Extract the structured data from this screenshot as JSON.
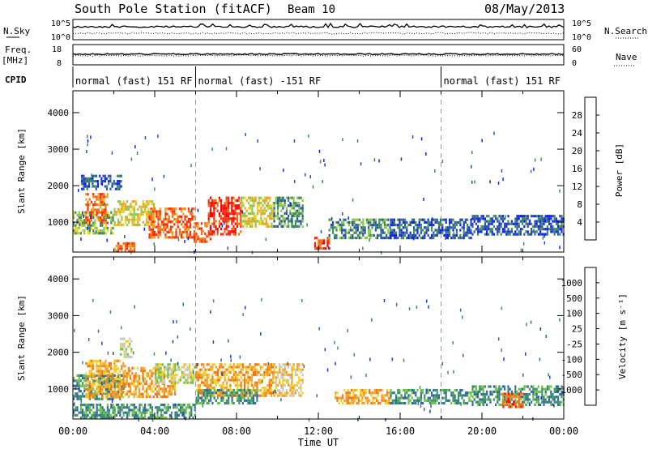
{
  "header": {
    "station": "South Pole Station (fitACF)",
    "beam": "Beam 10",
    "date": "08/May/2013"
  },
  "noise_panel": {
    "left_label": "N.Sky",
    "right_label": "N.Search",
    "left_ticks": [
      "10^5",
      "10^0"
    ],
    "right_ticks": [
      "10^5",
      "10^0"
    ]
  },
  "freq_panel": {
    "left_label_1": "Freq.",
    "left_label_2": "[MHz]",
    "right_label": "Nave",
    "left_ticks": [
      "18",
      "8"
    ],
    "right_ticks": [
      "60",
      "0"
    ]
  },
  "cpid": {
    "label": "CPID",
    "segments": [
      {
        "text": "normal (fast) 151 RF",
        "start_hour": 0,
        "end_hour": 6
      },
      {
        "text": "normal (fast) -151 RF",
        "start_hour": 6,
        "end_hour": 18
      },
      {
        "text": "normal (fast) 151 RF",
        "start_hour": 18,
        "end_hour": 24
      }
    ]
  },
  "power_panel": {
    "ylabel": "Slant Range [km]",
    "colorbar_label": "Power [dB]",
    "colorbar_ticks": [
      "28",
      "24",
      "20",
      "16",
      "12",
      "8",
      "4"
    ],
    "colors": [
      "#0f25ef",
      "#2b4fb0",
      "#3f8a5a",
      "#8cc84a",
      "#f0d020",
      "#f0a028",
      "#f07010",
      "#ff2a10",
      "#ff0000"
    ]
  },
  "velocity_panel": {
    "ylabel": "Slant Range [km]",
    "colorbar_label": "Velocity [m s⁻¹]",
    "colorbar_ticks": [
      "1000",
      "500",
      "100",
      "25",
      "-25",
      "-100",
      "-500",
      "-1000"
    ],
    "colors": [
      "#1a3cc8",
      "#2f6a9a",
      "#3d8f6a",
      "#6cc24a",
      "#c8c8c8",
      "#f0d028",
      "#f0a030",
      "#f07818",
      "#ff1010"
    ]
  },
  "x_axis": {
    "label": "Time UT",
    "ticks": [
      "00:00",
      "04:00",
      "08:00",
      "12:00",
      "16:00",
      "20:00",
      "00:00"
    ]
  },
  "chart_data": [
    {
      "type": "heatmap",
      "title": "South Pole Station (fitACF)",
      "subtitle": "Beam 10",
      "xlabel": "Time UT",
      "ylabel": "Slant Range [km]",
      "xlim": [
        0,
        24
      ],
      "ylim": [
        180,
        4600
      ],
      "yticks": [
        1000,
        2000,
        3000,
        4000
      ],
      "colorbar": {
        "label": "Power [dB]",
        "range": [
          0,
          32
        ],
        "ticks": [
          4,
          8,
          12,
          16,
          20,
          24,
          28
        ]
      },
      "blobs": [
        {
          "t0": 0.0,
          "t1": 2.0,
          "r0": 700,
          "r1": 1300,
          "level": 3
        },
        {
          "t0": 0.6,
          "t1": 1.7,
          "r0": 1000,
          "r1": 1800,
          "level": 6
        },
        {
          "t0": 2.0,
          "t1": 4.0,
          "r0": 900,
          "r1": 1600,
          "level": 4
        },
        {
          "t0": 3.7,
          "t1": 5.9,
          "r0": 600,
          "r1": 1400,
          "level": 6
        },
        {
          "t0": 5.9,
          "t1": 6.7,
          "r0": 500,
          "r1": 1000,
          "level": 6
        },
        {
          "t0": 6.6,
          "t1": 8.2,
          "r0": 700,
          "r1": 1700,
          "level": 7
        },
        {
          "t0": 8.2,
          "t1": 9.8,
          "r0": 900,
          "r1": 1700,
          "level": 4
        },
        {
          "t0": 9.8,
          "t1": 11.2,
          "r0": 900,
          "r1": 1700,
          "level": 2
        },
        {
          "t0": 2.0,
          "t1": 3.0,
          "r0": 180,
          "r1": 450,
          "level": 6
        },
        {
          "t0": 11.8,
          "t1": 12.5,
          "r0": 300,
          "r1": 600,
          "level": 7
        },
        {
          "t0": 12.5,
          "t1": 15.5,
          "r0": 600,
          "r1": 1100,
          "level": 2
        },
        {
          "t0": 15.5,
          "t1": 19.5,
          "r0": 600,
          "r1": 1100,
          "level": 1
        },
        {
          "t0": 19.5,
          "t1": 24.0,
          "r0": 700,
          "r1": 1200,
          "level": 1
        },
        {
          "t0": 0.4,
          "t1": 2.4,
          "r0": 1900,
          "r1": 2300,
          "level": 1
        }
      ]
    },
    {
      "type": "heatmap",
      "title": "South Pole Station (fitACF)",
      "subtitle": "Beam 10",
      "xlabel": "Time UT",
      "ylabel": "Slant Range [km]",
      "xlim": [
        0,
        24
      ],
      "ylim": [
        180,
        4600
      ],
      "yticks": [
        1000,
        2000,
        3000,
        4000
      ],
      "colorbar": {
        "label": "Velocity [m s⁻¹]",
        "ticks": [
          1000,
          500,
          100,
          25,
          -25,
          -100,
          -500,
          -1000
        ]
      },
      "blobs": [
        {
          "t0": 0.0,
          "t1": 2.5,
          "r0": 700,
          "r1": 1400,
          "level": 2
        },
        {
          "t0": 0.6,
          "t1": 2.6,
          "r0": 800,
          "r1": 1800,
          "level": 6
        },
        {
          "t0": 2.6,
          "t1": 5.0,
          "r0": 800,
          "r1": 1600,
          "level": 6
        },
        {
          "t0": 4.0,
          "t1": 6.0,
          "r0": 1200,
          "r1": 1700,
          "level": 4
        },
        {
          "t0": 2.3,
          "t1": 2.9,
          "r0": 1900,
          "r1": 2400,
          "level": 4
        },
        {
          "t0": 6.0,
          "t1": 9.8,
          "r0": 800,
          "r1": 1700,
          "level": 6
        },
        {
          "t0": 6.0,
          "t1": 9.0,
          "r0": 600,
          "r1": 1000,
          "level": 2
        },
        {
          "t0": 9.8,
          "t1": 11.2,
          "r0": 800,
          "r1": 1700,
          "level": 5
        },
        {
          "t0": 0.0,
          "t1": 6.0,
          "r0": 200,
          "r1": 600,
          "level": 2
        },
        {
          "t0": 12.8,
          "t1": 15.5,
          "r0": 600,
          "r1": 1000,
          "level": 6
        },
        {
          "t0": 15.5,
          "t1": 19.5,
          "r0": 600,
          "r1": 1000,
          "level": 2
        },
        {
          "t0": 19.5,
          "t1": 24.0,
          "r0": 600,
          "r1": 1100,
          "level": 2
        },
        {
          "t0": 21.0,
          "t1": 22.0,
          "r0": 500,
          "r1": 900,
          "level": 7
        }
      ]
    }
  ]
}
